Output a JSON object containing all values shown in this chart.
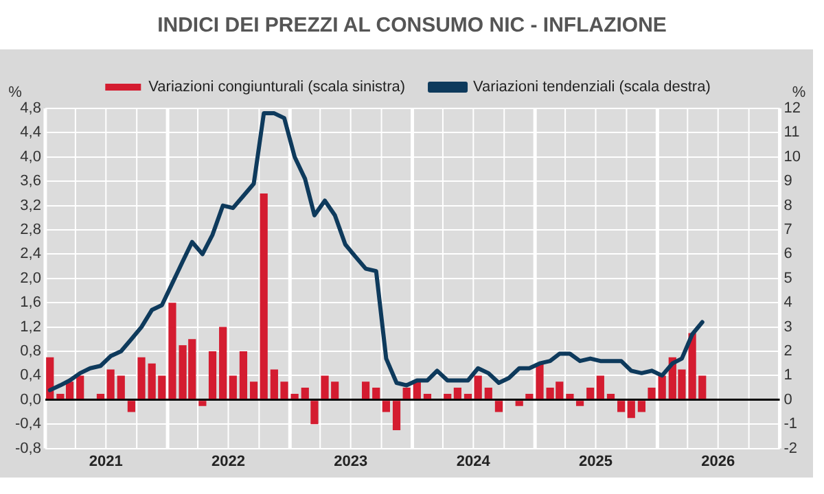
{
  "chart_data": {
    "type": "bar",
    "title": "INDICI DEI PREZZI AL CONSUMO NIC - INFLAZIONE",
    "ylabel": "%",
    "y2label": "%",
    "x": [
      "2021-01-15",
      "2021-02-15",
      "2021-03-15",
      "2021-04-15",
      "2021-05-15",
      "2021-06-15",
      "2021-07-15",
      "2021-08-15",
      "2021-09-15",
      "2021-10-15",
      "2021-11-15",
      "2021-12-15",
      "2022-01-15",
      "2022-02-15",
      "2022-03-15",
      "2022-04-15",
      "2022-05-15",
      "2022-06-15",
      "2022-07-15",
      "2022-08-15",
      "2022-09-15",
      "2022-10-15",
      "2022-11-15",
      "2022-12-15",
      "2023-01-15",
      "2023-02-15",
      "2023-03-15",
      "2023-04-15",
      "2023-05-15",
      "2023-06-15",
      "2023-07-15",
      "2023-08-15",
      "2023-09-15",
      "2023-10-15",
      "2023-11-15",
      "2023-12-15",
      "2024-01-15",
      "2024-02-15",
      "2024-03-15",
      "2024-04-15",
      "2024-05-15",
      "2024-06-15",
      "2024-07-15",
      "2024-08-15",
      "2024-09-15",
      "2024-10-15",
      "2024-11-15",
      "2024-12-15",
      "2025-01-15",
      "2025-02-15",
      "2025-03-15",
      "2025-04-15",
      "2025-05-15",
      "2025-06-15",
      "2025-07-15",
      "2025-08-15",
      "2025-09-15",
      "2025-10-15",
      "2025-11-15",
      "2025-12-15",
      "2026-01-15",
      "2026-02-15",
      "2026-03-15",
      "2026-04-15",
      "2026-05-15"
    ],
    "series": [
      {
        "name": "Variazioni congiunturali (scala sinistra)",
        "type": "bar",
        "color": "#d41c30",
        "values": [
          0.7,
          0.1,
          0.3,
          0.4,
          0.0,
          0.1,
          0.5,
          0.4,
          -0.2,
          0.7,
          0.6,
          0.4,
          1.6,
          0.9,
          1.0,
          -0.1,
          0.8,
          1.2,
          0.4,
          0.8,
          0.3,
          3.4,
          0.5,
          0.3,
          0.1,
          0.2,
          -0.4,
          0.4,
          0.3,
          0.0,
          0.0,
          0.3,
          0.2,
          -0.2,
          -0.5,
          0.2,
          0.3,
          0.1,
          0.0,
          0.1,
          0.2,
          0.1,
          0.4,
          0.2,
          -0.2,
          0.0,
          -0.1,
          0.1,
          0.6,
          0.2,
          0.3,
          0.1,
          -0.1,
          0.2,
          0.4,
          0.1,
          -0.2,
          -0.3,
          -0.2,
          0.2,
          0.4,
          0.7,
          0.5,
          1.1,
          0.4
        ]
      },
      {
        "name": "Variazioni tendenziali (scala destra)",
        "type": "line",
        "axis": "y2",
        "color": "#0e3a5c",
        "values": [
          0.4,
          0.6,
          0.8,
          1.1,
          1.3,
          1.4,
          1.8,
          2.0,
          2.5,
          3.0,
          3.7,
          3.9,
          4.8,
          5.7,
          6.5,
          6.0,
          6.8,
          8.0,
          7.9,
          8.4,
          8.9,
          11.8,
          11.8,
          11.6,
          10.0,
          9.1,
          7.6,
          8.2,
          7.6,
          6.4,
          5.9,
          5.4,
          5.3,
          1.7,
          0.7,
          0.6,
          0.8,
          0.8,
          1.2,
          0.8,
          0.8,
          0.8,
          1.3,
          1.1,
          0.7,
          0.9,
          1.3,
          1.3,
          1.5,
          1.6,
          1.9,
          1.9,
          1.6,
          1.7,
          1.6,
          1.6,
          1.6,
          1.2,
          1.1,
          1.2,
          1.0,
          1.5,
          1.7,
          2.7,
          3.2
        ]
      }
    ],
    "xlim": [
      "2021-01-01",
      "2027-01-01"
    ],
    "xticks": [
      {
        "value": "2021-07-01",
        "label": "2021"
      },
      {
        "value": "2022-07-01",
        "label": "2022"
      },
      {
        "value": "2023-07-01",
        "label": "2023"
      },
      {
        "value": "2024-07-01",
        "label": "2024"
      },
      {
        "value": "2025-07-01",
        "label": "2025"
      },
      {
        "value": "2026-07-01",
        "label": "2026"
      }
    ],
    "ylim": [
      -0.8,
      4.8
    ],
    "yticks": [
      {
        "value": -0.8,
        "label": "-0,8"
      },
      {
        "value": -0.4,
        "label": "-0,4"
      },
      {
        "value": 0,
        "label": "0,0"
      },
      {
        "value": 0.4,
        "label": "0,4"
      },
      {
        "value": 0.8,
        "label": "0,8"
      },
      {
        "value": 1.2,
        "label": "1,2"
      },
      {
        "value": 1.6,
        "label": "1,6"
      },
      {
        "value": 2.0,
        "label": "2,0"
      },
      {
        "value": 2.4,
        "label": "2,4"
      },
      {
        "value": 2.8,
        "label": "2,8"
      },
      {
        "value": 3.2,
        "label": "3,2"
      },
      {
        "value": 3.6,
        "label": "3,6"
      },
      {
        "value": 4.0,
        "label": "4,0"
      },
      {
        "value": 4.4,
        "label": "4,4"
      },
      {
        "value": 4.8,
        "label": "4,8"
      }
    ],
    "y2lim": [
      -2,
      12
    ],
    "y2ticks": [
      -2,
      -1,
      0,
      1,
      2,
      3,
      4,
      5,
      6,
      7,
      8,
      9,
      10,
      11,
      12
    ],
    "grid": true,
    "legend": "top",
    "marker": "none",
    "line_style": "solid"
  }
}
